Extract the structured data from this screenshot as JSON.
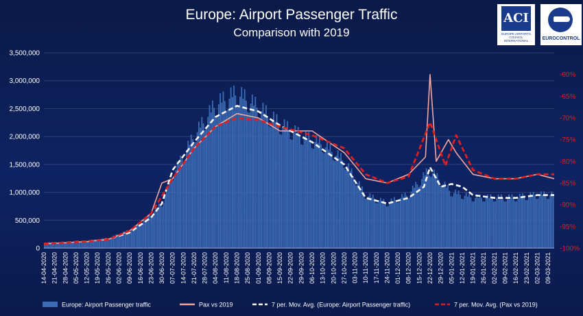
{
  "title": "Europe: Airport Passenger Traffic",
  "subtitle": "Comparison with 2019",
  "logos": {
    "aci_mark": "ACI",
    "aci_text": "EUROPE AIRPORTS COUNCIL INTERNATIONAL",
    "eurocontrol_text": "EUROCONTROL"
  },
  "colors": {
    "background": "#0e2362",
    "bars": "#3c6bb5",
    "pax_vs_2019": "#f2a8a0",
    "mov_avg_traffic": "#ffffff",
    "mov_avg_pax": "#e01f1f",
    "right_axis": "#e01f1f"
  },
  "chart_data": {
    "type": "bar",
    "ylim": [
      0,
      3500000
    ],
    "y2lim": [
      -100,
      -55
    ],
    "yticks": [
      "0",
      "500,000",
      "1,000,000",
      "1,500,000",
      "2,000,000",
      "2,500,000",
      "3,000,000",
      "3,500,000"
    ],
    "y2ticks": [
      "-60%",
      "-65%",
      "-70%",
      "-75%",
      "-80%",
      "-85%",
      "-90%",
      "-95%",
      "-100%"
    ],
    "x_start": "2020-04-14",
    "x_end": "2021-03-13",
    "xticks": [
      "14-04-2020",
      "21-04-2020",
      "28-04-2020",
      "05-05-2020",
      "12-05-2020",
      "19-05-2020",
      "26-05-2020",
      "02-06-2020",
      "09-06-2020",
      "16-06-2020",
      "23-06-2020",
      "30-06-2020",
      "07-07-2020",
      "14-07-2020",
      "21-07-2020",
      "28-07-2020",
      "04-08-2020",
      "11-08-2020",
      "18-08-2020",
      "25-08-2020",
      "01-09-2020",
      "08-09-2020",
      "15-09-2020",
      "22-09-2020",
      "29-09-2020",
      "06-10-2020",
      "13-10-2020",
      "20-10-2020",
      "27-10-2020",
      "03-11-2020",
      "10-11-2020",
      "17-11-2020",
      "24-11-2020",
      "01-12-2020",
      "08-12-2020",
      "15-12-2020",
      "22-12-2020",
      "29-12-2020",
      "05-01-2021",
      "12-01-2021",
      "19-01-2021",
      "26-01-2021",
      "02-02-2021",
      "09-02-2021",
      "16-02-2021",
      "23-02-2021",
      "02-03-2021",
      "09-03-2021"
    ],
    "series": [
      {
        "name": "Europe: Airport Passenger traffic",
        "kind": "bar",
        "axis": "left",
        "points": [
          [
            "2020-04-14",
            100000
          ],
          [
            "2020-04-28",
            100000
          ],
          [
            "2020-05-12",
            130000
          ],
          [
            "2020-05-26",
            180000
          ],
          [
            "2020-06-09",
            320000
          ],
          [
            "2020-06-23",
            600000
          ],
          [
            "2020-06-30",
            800000
          ],
          [
            "2020-07-07",
            1300000
          ],
          [
            "2020-07-21",
            2000000
          ],
          [
            "2020-08-04",
            2550000
          ],
          [
            "2020-08-18",
            2750000
          ],
          [
            "2020-09-01",
            2500000
          ],
          [
            "2020-09-15",
            2200000
          ],
          [
            "2020-09-29",
            2000000
          ],
          [
            "2020-10-13",
            1850000
          ],
          [
            "2020-10-27",
            1550000
          ],
          [
            "2020-11-10",
            950000
          ],
          [
            "2020-11-24",
            800000
          ],
          [
            "2020-12-08",
            950000
          ],
          [
            "2020-12-22",
            1400000
          ],
          [
            "2021-01-05",
            1000000
          ],
          [
            "2021-01-19",
            900000
          ],
          [
            "2021-02-02",
            900000
          ],
          [
            "2021-02-16",
            900000
          ],
          [
            "2021-03-02",
            950000
          ],
          [
            "2021-03-13",
            950000
          ]
        ]
      },
      {
        "name": "Pax vs 2019",
        "kind": "line",
        "axis": "right",
        "points": [
          [
            "2020-04-14",
            -99
          ],
          [
            "2020-05-12",
            -98.5
          ],
          [
            "2020-05-26",
            -98
          ],
          [
            "2020-06-09",
            -96
          ],
          [
            "2020-06-23",
            -92
          ],
          [
            "2020-06-30",
            -85
          ],
          [
            "2020-07-07",
            -84
          ],
          [
            "2020-07-21",
            -77
          ],
          [
            "2020-08-04",
            -72
          ],
          [
            "2020-08-18",
            -69
          ],
          [
            "2020-09-01",
            -70
          ],
          [
            "2020-09-15",
            -73
          ],
          [
            "2020-10-06",
            -73
          ],
          [
            "2020-10-27",
            -78
          ],
          [
            "2020-11-10",
            -84
          ],
          [
            "2020-11-24",
            -85
          ],
          [
            "2020-12-08",
            -83
          ],
          [
            "2020-12-19",
            -79
          ],
          [
            "2020-12-22",
            -60
          ],
          [
            "2020-12-26",
            -80
          ],
          [
            "2021-01-03",
            -75
          ],
          [
            "2021-01-08",
            -78
          ],
          [
            "2021-01-19",
            -83
          ],
          [
            "2021-02-02",
            -84
          ],
          [
            "2021-02-16",
            -84
          ],
          [
            "2021-03-02",
            -83
          ],
          [
            "2021-03-13",
            -84
          ]
        ]
      },
      {
        "name": "7 per. Mov. Avg. (Europe: Airport Passenger traffic)",
        "kind": "line",
        "axis": "left",
        "points": [
          [
            "2020-04-14",
            80000
          ],
          [
            "2020-04-28",
            100000
          ],
          [
            "2020-05-12",
            120000
          ],
          [
            "2020-05-26",
            160000
          ],
          [
            "2020-06-09",
            280000
          ],
          [
            "2020-06-23",
            550000
          ],
          [
            "2020-06-30",
            800000
          ],
          [
            "2020-07-07",
            1400000
          ],
          [
            "2020-07-21",
            1900000
          ],
          [
            "2020-08-04",
            2350000
          ],
          [
            "2020-08-18",
            2550000
          ],
          [
            "2020-09-01",
            2450000
          ],
          [
            "2020-09-15",
            2200000
          ],
          [
            "2020-10-06",
            1900000
          ],
          [
            "2020-10-27",
            1500000
          ],
          [
            "2020-11-10",
            900000
          ],
          [
            "2020-11-24",
            800000
          ],
          [
            "2020-12-08",
            900000
          ],
          [
            "2020-12-18",
            1100000
          ],
          [
            "2020-12-22",
            1450000
          ],
          [
            "2020-12-29",
            1100000
          ],
          [
            "2021-01-05",
            1150000
          ],
          [
            "2021-01-12",
            1100000
          ],
          [
            "2021-01-19",
            950000
          ],
          [
            "2021-02-02",
            900000
          ],
          [
            "2021-02-16",
            900000
          ],
          [
            "2021-03-02",
            950000
          ],
          [
            "2021-03-13",
            950000
          ]
        ]
      },
      {
        "name": "7 per. Mov. Avg. (Pax vs 2019)",
        "kind": "line",
        "axis": "right",
        "points": [
          [
            "2020-04-14",
            -99
          ],
          [
            "2020-05-12",
            -98.5
          ],
          [
            "2020-05-26",
            -98
          ],
          [
            "2020-06-09",
            -96
          ],
          [
            "2020-06-23",
            -92
          ],
          [
            "2020-07-07",
            -84
          ],
          [
            "2020-07-21",
            -77
          ],
          [
            "2020-08-04",
            -72
          ],
          [
            "2020-08-18",
            -70
          ],
          [
            "2020-09-01",
            -70.5
          ],
          [
            "2020-09-15",
            -72
          ],
          [
            "2020-10-06",
            -74
          ],
          [
            "2020-10-27",
            -77
          ],
          [
            "2020-11-10",
            -83
          ],
          [
            "2020-11-24",
            -85
          ],
          [
            "2020-12-08",
            -83.5
          ],
          [
            "2020-12-22",
            -71
          ],
          [
            "2021-01-01",
            -81
          ],
          [
            "2021-01-08",
            -74
          ],
          [
            "2021-01-19",
            -82
          ],
          [
            "2021-02-02",
            -84
          ],
          [
            "2021-02-16",
            -84
          ],
          [
            "2021-03-02",
            -83
          ],
          [
            "2021-03-13",
            -83
          ]
        ]
      }
    ],
    "legend": "bottom"
  }
}
